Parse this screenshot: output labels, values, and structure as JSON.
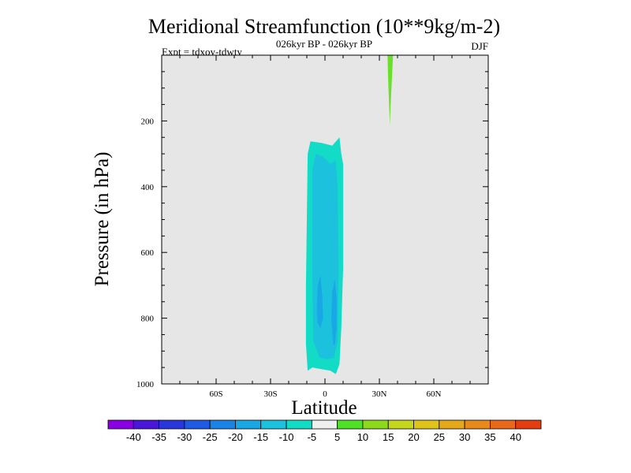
{
  "chart_data": {
    "type": "heatmap",
    "title": "Meridional Streamfunction (10**9kg/m-2)",
    "subtitle_center": "026kyr BP - 026kyr BP",
    "subtitle_left": "Expt = tdxoy-tdwty",
    "subtitle_right": "DJF",
    "xlabel": "Latitude",
    "ylabel": "Pressure (in hPa)",
    "x_range": [
      -90,
      90
    ],
    "y_range": [
      0,
      1000
    ],
    "y_reversed": true,
    "background_color": "#e6e6e6",
    "x_ticks": [
      {
        "value": -60,
        "label": "60S"
      },
      {
        "value": -30,
        "label": "30S"
      },
      {
        "value": 0,
        "label": "0"
      },
      {
        "value": 30,
        "label": "30N"
      },
      {
        "value": 60,
        "label": "60N"
      }
    ],
    "y_ticks": [
      {
        "value": 200,
        "label": "200"
      },
      {
        "value": 400,
        "label": "400"
      },
      {
        "value": 600,
        "label": "600"
      },
      {
        "value": 800,
        "label": "800"
      },
      {
        "value": 1000,
        "label": "1000"
      }
    ],
    "regions": [
      {
        "name": "negative cell outer",
        "level": "-10 to -5",
        "color": "#13dcc6",
        "outline": [
          [
            -9.5,
            960
          ],
          [
            -10.5,
            880
          ],
          [
            -10.5,
            700
          ],
          [
            -10,
            500
          ],
          [
            -9.5,
            300
          ],
          [
            -8,
            262
          ],
          [
            -2,
            267
          ],
          [
            4,
            275
          ],
          [
            8,
            250
          ],
          [
            9,
            300
          ],
          [
            10,
            330
          ],
          [
            10,
            650
          ],
          [
            9,
            830
          ],
          [
            8,
            940
          ],
          [
            6,
            970
          ],
          [
            3,
            960
          ],
          [
            -2,
            955
          ],
          [
            -7,
            950
          ]
        ]
      },
      {
        "name": "negative cell inner",
        "level": "-15 to -10",
        "color": "#1cc2dd",
        "outline": [
          [
            -6.5,
            870
          ],
          [
            -7,
            650
          ],
          [
            -7,
            350
          ],
          [
            -5,
            300
          ],
          [
            -1,
            310
          ],
          [
            3,
            330
          ],
          [
            6,
            320
          ],
          [
            7,
            400
          ],
          [
            7.5,
            650
          ],
          [
            7,
            870
          ],
          [
            5,
            920
          ],
          [
            1,
            925
          ],
          [
            -3,
            920
          ]
        ]
      },
      {
        "name": "negative cell core west",
        "level": "-20 to -15",
        "color": "#1aa7e6",
        "outline": [
          [
            -4.5,
            780
          ],
          [
            -4,
            700
          ],
          [
            -2.5,
            670
          ],
          [
            -1.5,
            730
          ],
          [
            -1,
            800
          ],
          [
            -2.5,
            830
          ],
          [
            -4,
            815
          ]
        ]
      },
      {
        "name": "negative cell core east",
        "level": "-20 to -15",
        "color": "#1aa7e6",
        "outline": [
          [
            4.5,
            880
          ],
          [
            3.5,
            800
          ],
          [
            4,
            720
          ],
          [
            5.5,
            680
          ],
          [
            6.5,
            740
          ],
          [
            6.5,
            830
          ],
          [
            5.5,
            880
          ]
        ]
      },
      {
        "name": "positive cell north",
        "level": "5 to 10",
        "color": "#6ae02a",
        "outline": [
          [
            34.5,
            0
          ],
          [
            37.5,
            0
          ],
          [
            37,
            60
          ],
          [
            36.5,
            120
          ],
          [
            36,
            175
          ],
          [
            35.8,
            215
          ],
          [
            35.5,
            165
          ],
          [
            35,
            100
          ],
          [
            34.7,
            50
          ]
        ]
      }
    ],
    "colorbar": {
      "labels": [
        "-40",
        "-35",
        "-30",
        "-25",
        "-20",
        "-15",
        "-10",
        "-5",
        "5",
        "10",
        "15",
        "20",
        "25",
        "30",
        "35",
        "40"
      ],
      "colors": [
        "#8a00e2",
        "#4a16d8",
        "#2836da",
        "#1e5ae4",
        "#1b82e6",
        "#1aa7e6",
        "#1cc2dd",
        "#13dcc6",
        "#efefef",
        "#4fe028",
        "#8dd91c",
        "#c4d71c",
        "#dfc31a",
        "#e4a81a",
        "#e7891b",
        "#e8681c",
        "#e33d10"
      ]
    }
  }
}
